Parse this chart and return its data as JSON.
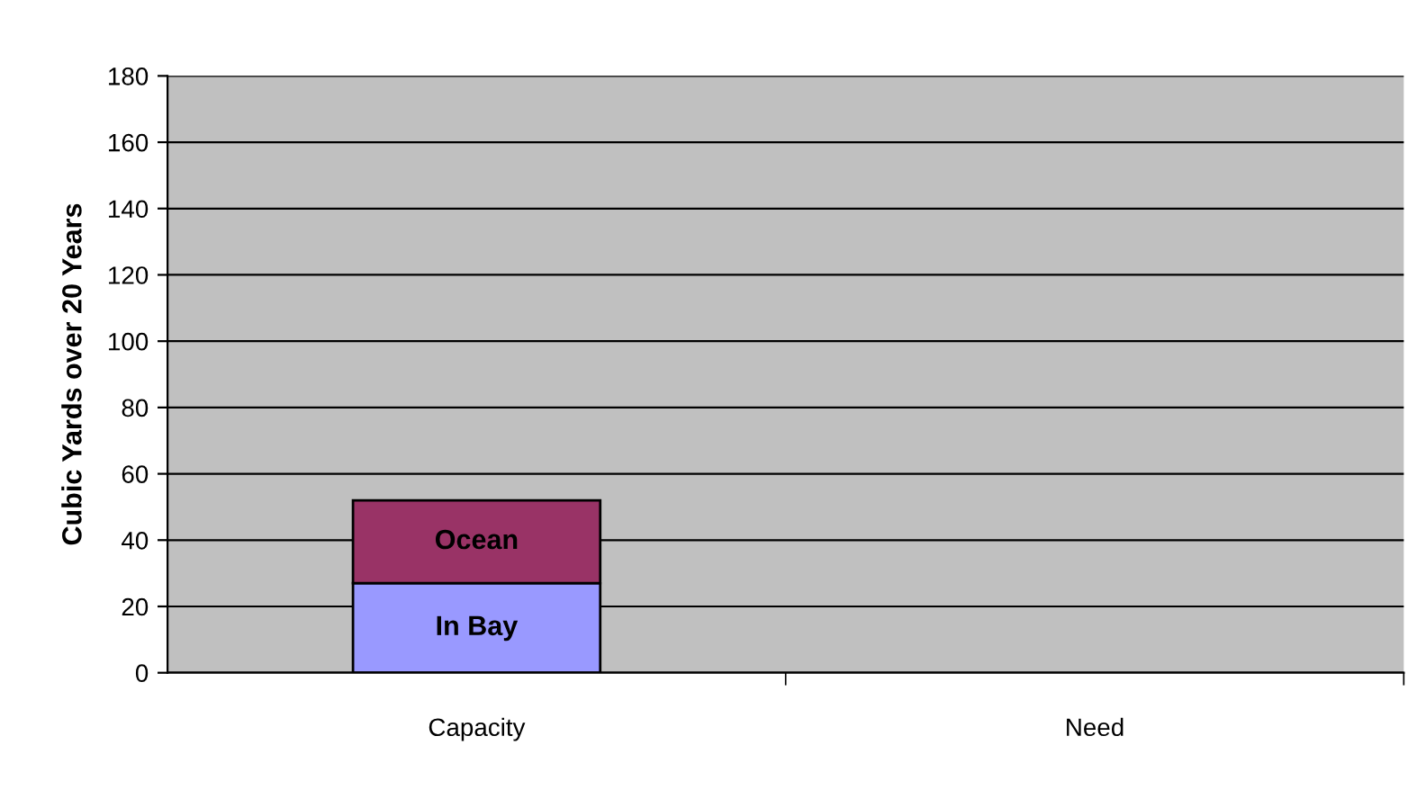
{
  "chart_data": {
    "type": "bar",
    "stacked": true,
    "ylabel": "Cubic Yards over 20 Years",
    "categories": [
      "Capacity",
      "Need"
    ],
    "series": [
      {
        "name": "In Bay",
        "color": "#9999ff",
        "values": [
          27,
          null
        ]
      },
      {
        "name": "Ocean",
        "color": "#993366",
        "values": [
          25,
          null
        ]
      }
    ],
    "ylim": [
      0,
      180
    ],
    "yticks": [
      0,
      20,
      40,
      60,
      80,
      100,
      120,
      140,
      160,
      180
    ],
    "grid": "y",
    "legend": false
  }
}
